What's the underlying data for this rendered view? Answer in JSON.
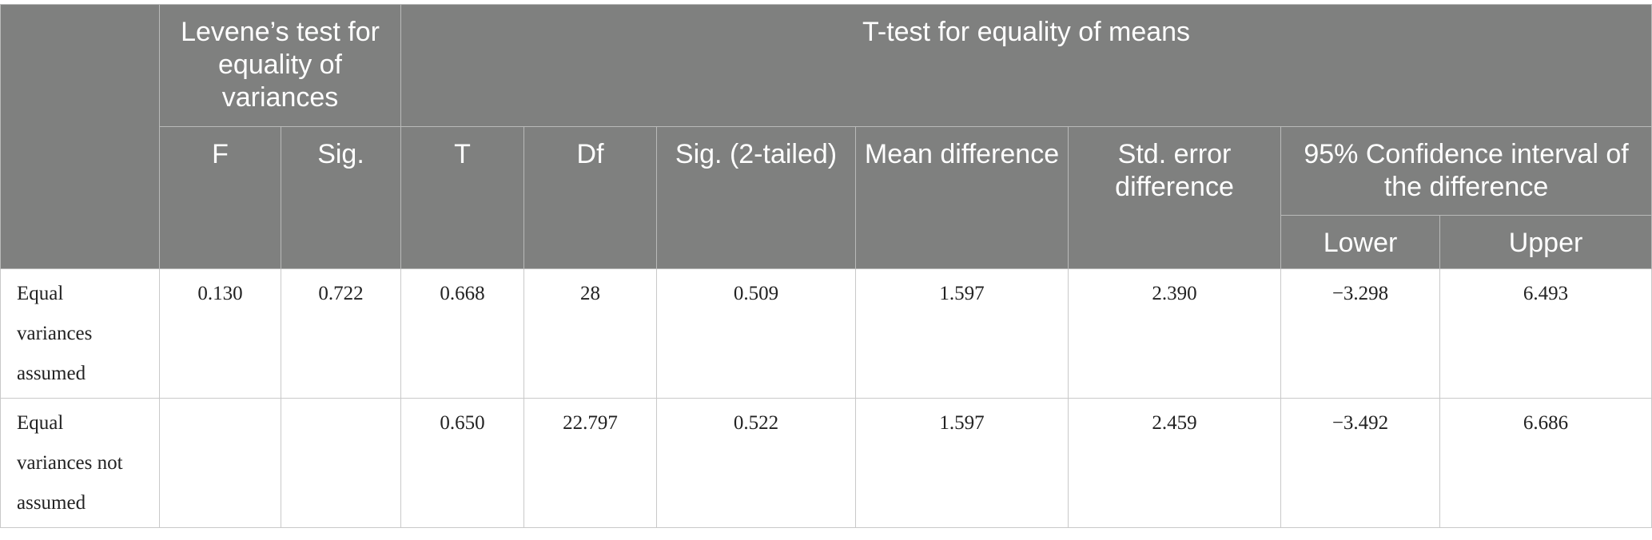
{
  "table": {
    "header": {
      "groups": [
        "Levene’s test for equality of variances",
        "T-test for equality of means"
      ],
      "columns": [
        "F",
        "Sig.",
        "T",
        "Df",
        "Sig. (2-tailed)",
        "Mean difference",
        "Std. error difference",
        "95% Confidence interval of the difference"
      ],
      "subcolumns": [
        "Lower",
        "Upper"
      ]
    },
    "rows": [
      {
        "label": "Equal variances assumed",
        "cells": [
          "0.130",
          "0.722",
          "0.668",
          "28",
          "0.509",
          "1.597",
          "2.390",
          "−3.298",
          "6.493"
        ]
      },
      {
        "label": "Equal variances not assumed",
        "cells": [
          null,
          null,
          "0.650",
          "22.797",
          "0.522",
          "1.597",
          "2.459",
          "−3.492",
          "6.686"
        ]
      }
    ]
  }
}
